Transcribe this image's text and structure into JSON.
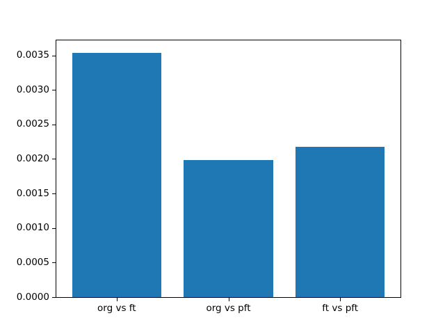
{
  "figure": {
    "background": "#ffffff",
    "bar_color": "#1f77b4",
    "spine_color": "#000000",
    "text_color": "#000000"
  },
  "chart_data": {
    "type": "bar",
    "title": "",
    "xlabel": "",
    "ylabel": "",
    "categories": [
      "org vs ft",
      "org vs pft",
      "ft vs pft"
    ],
    "values": [
      0.00354,
      0.00198,
      0.00218
    ],
    "bar_width": 0.8,
    "xlim": [
      -0.54,
      2.54
    ],
    "ylim": [
      0,
      0.003717
    ],
    "yticks": [
      0.0,
      0.0005,
      0.001,
      0.0015,
      0.002,
      0.0025,
      0.003,
      0.0035
    ],
    "ytick_labels": [
      "0.0000",
      "0.0005",
      "0.0010",
      "0.0015",
      "0.0020",
      "0.0025",
      "0.0030",
      "0.0035"
    ],
    "grid": false,
    "legend": "none"
  }
}
